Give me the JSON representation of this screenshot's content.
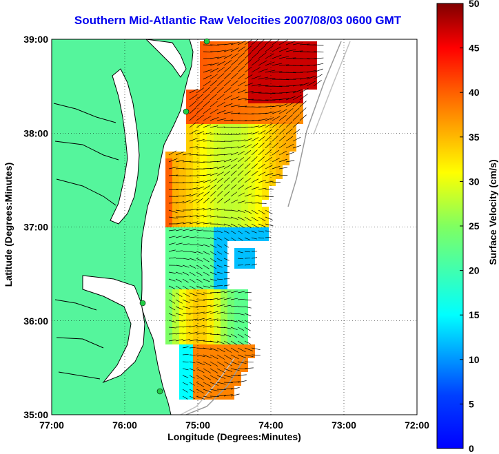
{
  "title": "Southern Mid-Atlantic Raw Velocities 2007/08/03 0600 GMT",
  "xlabel": "Longitude (Degrees:Minutes)",
  "ylabel": "Latitude (Degrees:Minutes)",
  "colorbar_label": "Surface Velocity (cm/s)",
  "x_ticks": [
    "77:00",
    "76:00",
    "75:00",
    "74:00",
    "73:00",
    "72:00"
  ],
  "y_ticks": [
    "39:00",
    "38:00",
    "37:00",
    "36:00",
    "35:00"
  ],
  "colorbar_ticks": [
    "50",
    "45",
    "40",
    "35",
    "30",
    "25",
    "20",
    "15",
    "10",
    "5",
    "0"
  ],
  "colors": {
    "land": "#55f59c",
    "water": "#ffffff",
    "coastline": "#000000",
    "bathymetry": "#9a9a9a",
    "station": "#22cc44",
    "title": "#0000ee",
    "arrow": "#000000"
  },
  "map": {
    "lon_range": [
      -77,
      -72
    ],
    "lat_range": [
      35,
      39
    ],
    "grid": true,
    "velocity_range_cm_s": [
      0,
      50
    ],
    "colormap": "jet"
  }
}
